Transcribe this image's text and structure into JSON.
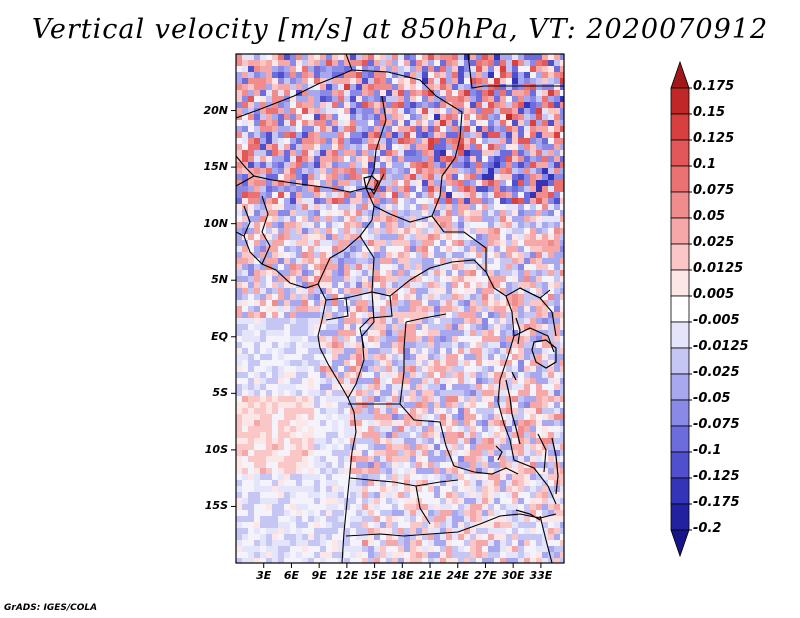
{
  "title": "Vertical velocity [m/s] at 850hPa, VT: 2020070912",
  "footer": "GrADS: IGES/COLA",
  "map": {
    "variable": "Vertical velocity",
    "units": "m/s",
    "level": "850hPa",
    "valid_time": "2020070912",
    "lon_range": [
      0,
      35.5
    ],
    "lat_range": [
      -20,
      25
    ],
    "lat_ticks": [
      {
        "value": 20,
        "label": "20N"
      },
      {
        "value": 15,
        "label": "15N"
      },
      {
        "value": 10,
        "label": "10N"
      },
      {
        "value": 5,
        "label": "5N"
      },
      {
        "value": 0,
        "label": "EQ"
      },
      {
        "value": -5,
        "label": "5S"
      },
      {
        "value": -10,
        "label": "10S"
      },
      {
        "value": -15,
        "label": "15S"
      }
    ],
    "lon_ticks": [
      {
        "value": 3,
        "label": "3E"
      },
      {
        "value": 6,
        "label": "6E"
      },
      {
        "value": 9,
        "label": "9E"
      },
      {
        "value": 12,
        "label": "12E"
      },
      {
        "value": 15,
        "label": "15E"
      },
      {
        "value": 18,
        "label": "18E"
      },
      {
        "value": 21,
        "label": "21E"
      },
      {
        "value": 24,
        "label": "24E"
      },
      {
        "value": 27,
        "label": "27E"
      },
      {
        "value": 30,
        "label": "30E"
      },
      {
        "value": 33,
        "label": "33E"
      }
    ]
  },
  "colorbar": {
    "levels": [
      "0.175",
      "0.15",
      "0.125",
      "0.1",
      "0.075",
      "0.05",
      "0.025",
      "0.0125",
      "0.005",
      "-0.005",
      "-0.0125",
      "-0.025",
      "-0.05",
      "-0.075",
      "-0.1",
      "-0.125",
      "-0.175",
      "-0.2"
    ],
    "colors": [
      "#a01818",
      "#c02828",
      "#d84040",
      "#e25858",
      "#ea7272",
      "#f08c8c",
      "#f6a8a8",
      "#fac6c6",
      "#fde6e6",
      "#ffffff",
      "#e4e4fa",
      "#c6c6f4",
      "#a8a8ee",
      "#8a8ae6",
      "#6c6cdc",
      "#5050cc",
      "#3434b8",
      "#2222a0",
      "#16168a"
    ]
  }
}
